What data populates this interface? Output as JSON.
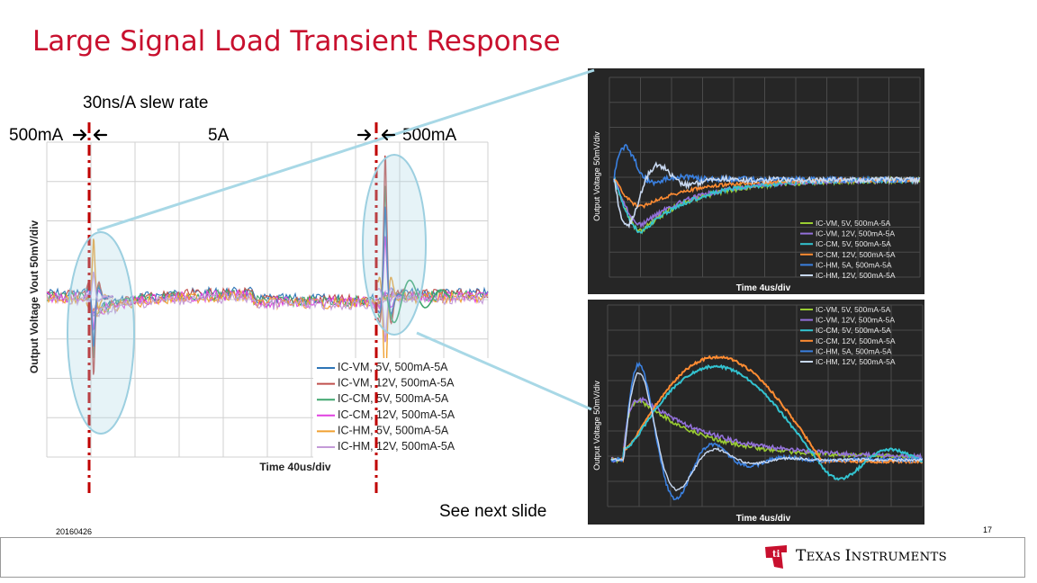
{
  "slide": {
    "title": "Large Signal Load Transient Response",
    "slew_rate": "30ns/A slew rate",
    "load_start": "500mA",
    "load_high": "5A",
    "load_end": "500mA",
    "next_note": "See next slide",
    "date": "20160426",
    "page_number": "17",
    "logo_text_1": "T",
    "logo_text_2": "EXAS ",
    "logo_text_3": "I",
    "logo_text_4": "NSTRUMENTS",
    "colors": {
      "title": "#c8102e",
      "overlay": "#add8e6",
      "marker": "#c00000",
      "logo": "#c8102e"
    }
  },
  "chart_data": [
    {
      "type": "line",
      "id": "main",
      "xlabel": "Time  40us/div",
      "ylabel": "Output Voltage  Vout  50mV/div",
      "grid": true,
      "legend_position": "bottom-right",
      "series": [
        {
          "name": "IC-VM, 5V, 500mA-5A",
          "color": "#2e75b6"
        },
        {
          "name": "IC-VM, 12V, 500mA-5A",
          "color": "#c0504d"
        },
        {
          "name": "IC-CM, 5V, 500mA-5A",
          "color": "#3fa66e"
        },
        {
          "name": "IC-CM, 12V, 500mA-5A",
          "color": "#e040e0"
        },
        {
          "name": "IC-HM, 5V, 500mA-5A",
          "color": "#f0a030"
        },
        {
          "name": "IC-HM, 12V, 500mA-5A",
          "color": "#c49ad8"
        }
      ]
    },
    {
      "type": "line",
      "id": "zoom-top",
      "xlabel": "Time  4us/div",
      "ylabel": "Output Voltage  50mV/div",
      "grid": true,
      "legend_position": "bottom-right",
      "series": [
        {
          "name": "IC-VM, 5V, 500mA-5A",
          "color": "#9acd32"
        },
        {
          "name": "IC-VM, 12V, 500mA-5A",
          "color": "#9370db"
        },
        {
          "name": "IC-CM, 5V, 500mA-5A",
          "color": "#33c3d0"
        },
        {
          "name": "IC-CM, 12V, 500mA-5A",
          "color": "#ff8c32"
        },
        {
          "name": "IC-HM, 5A, 500mA-5A",
          "color": "#3a80e0"
        },
        {
          "name": "IC-HM, 12V, 500mA-5A",
          "color": "#c8d8f0"
        }
      ]
    },
    {
      "type": "line",
      "id": "zoom-bottom",
      "xlabel": "Time  4us/div",
      "ylabel": "Output Voltage  50mV/div",
      "grid": true,
      "legend_position": "top-right",
      "series": [
        {
          "name": "IC-VM, 5V, 500mA-5A",
          "color": "#9acd32"
        },
        {
          "name": "IC-VM, 12V, 500mA-5A",
          "color": "#9370db"
        },
        {
          "name": "IC-CM, 5V, 500mA-5A",
          "color": "#33c3d0"
        },
        {
          "name": "IC-CM, 12V, 500mA-5A",
          "color": "#ff8c32"
        },
        {
          "name": "IC-HM, 5A, 500mA-5A",
          "color": "#3a80e0"
        },
        {
          "name": "IC-HM, 12V, 500mA-5A",
          "color": "#c8d8f0"
        }
      ]
    }
  ]
}
